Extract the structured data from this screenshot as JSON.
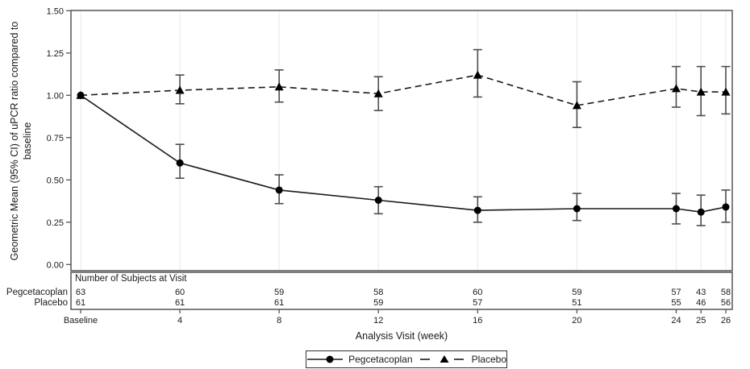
{
  "figure": {
    "ylabel": "Geometric Mean (95% CI) of uPCR ratio compared to baseline",
    "ylabel_line1": "Geometric Mean (95% CI) of uPCR ratio compared to",
    "ylabel_line2": "baseline",
    "xlabel": "Analysis Visit (week)",
    "subjects_header": "Number of Subjects at Visit"
  },
  "colors": {
    "line": "#1a1a1a",
    "marker": "#000000",
    "error_bar": "#4d4d4d",
    "frame": "#555555",
    "gridline": "#e8e8e8",
    "text": "#1a1a1a"
  },
  "chart_data": {
    "type": "line",
    "title": "",
    "xlabel": "Analysis Visit (week)",
    "ylabel": "Geometric Mean (95% CI) of uPCR ratio compared to baseline",
    "x_weeks": [
      0,
      4,
      8,
      12,
      16,
      20,
      24,
      25,
      26
    ],
    "x_tick_labels": [
      "Baseline",
      "4",
      "8",
      "12",
      "16",
      "20",
      "24",
      "25",
      "26"
    ],
    "ylim": [
      0.0,
      1.5
    ],
    "y_ticks": [
      0.0,
      0.25,
      0.5,
      0.75,
      1.0,
      1.25,
      1.5
    ],
    "grid": "vertical-light",
    "legend_position": "bottom-center",
    "series": [
      {
        "name": "Placebo",
        "marker": "triangle",
        "line_style": "dashed",
        "values": [
          1.0,
          1.03,
          1.05,
          1.01,
          1.12,
          0.94,
          1.04,
          1.02,
          1.02
        ],
        "ci_low": [
          1.0,
          0.95,
          0.96,
          0.91,
          0.99,
          0.81,
          0.93,
          0.88,
          0.89
        ],
        "ci_high": [
          1.0,
          1.12,
          1.15,
          1.11,
          1.27,
          1.08,
          1.17,
          1.17,
          1.17
        ],
        "n_at_visit": [
          61,
          61,
          61,
          59,
          57,
          51,
          55,
          46,
          56
        ]
      },
      {
        "name": "Pegcetacoplan",
        "marker": "circle",
        "line_style": "solid",
        "values": [
          1.0,
          0.6,
          0.44,
          0.38,
          0.32,
          0.33,
          0.33,
          0.31,
          0.34
        ],
        "ci_low": [
          1.0,
          0.51,
          0.36,
          0.3,
          0.25,
          0.26,
          0.24,
          0.23,
          0.25
        ],
        "ci_high": [
          1.0,
          0.71,
          0.53,
          0.46,
          0.4,
          0.42,
          0.42,
          0.41,
          0.44
        ],
        "n_at_visit": [
          63,
          60,
          59,
          58,
          60,
          59,
          57,
          43,
          58
        ]
      }
    ]
  }
}
